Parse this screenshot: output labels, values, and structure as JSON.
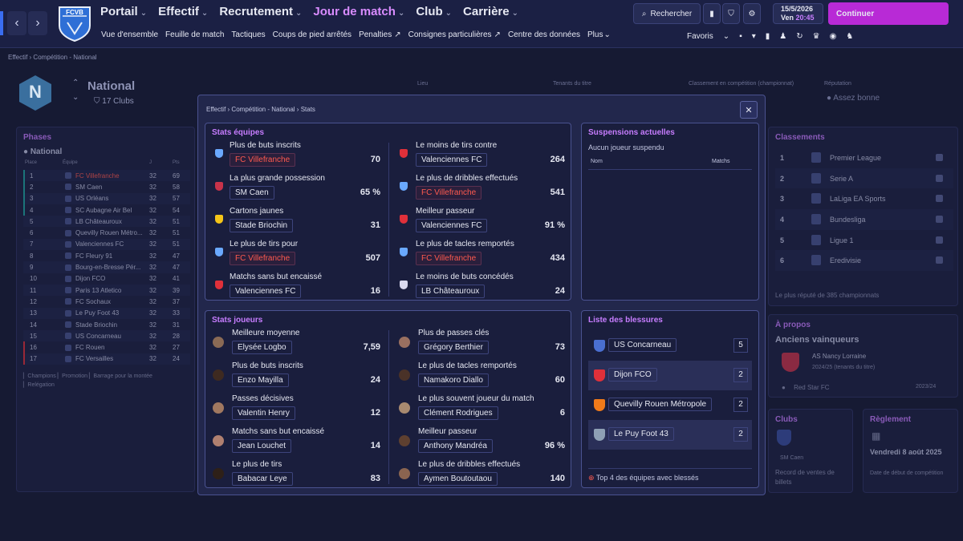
{
  "nav": {
    "main": [
      {
        "label": "Portail"
      },
      {
        "label": "Effectif"
      },
      {
        "label": "Recrutement"
      },
      {
        "label": "Jour de match",
        "active": true
      },
      {
        "label": "Club"
      },
      {
        "label": "Carrière"
      }
    ],
    "sub": [
      "Vue d'ensemble",
      "Feuille de match",
      "Tactiques",
      "Coups de pied arrêtés",
      "Penalties",
      "Consignes particulières",
      "Centre des données",
      "Plus"
    ],
    "search": "Rechercher",
    "date": "15/5/2026",
    "day": "Ven",
    "time": "20:45",
    "continue": "Continuer",
    "favs": "Favoris",
    "logo_text": "FCVB"
  },
  "breadcrumb": {
    "a": "Effectif",
    "b": "Compétition - National"
  },
  "competition": {
    "name": "National",
    "clubs": "17 Clubs",
    "labels": [
      "Lieu",
      "Tenants du titre",
      "Classement en compétition (championnat)",
      "Réputation"
    ],
    "reputation": "Assez bonne"
  },
  "phases": {
    "title": "Phases",
    "league": "National",
    "headers": [
      "Place",
      "Équipe",
      "J",
      "Pts"
    ],
    "rows": [
      [
        "1",
        "FC Villefranche",
        "32",
        "69"
      ],
      [
        "2",
        "SM Caen",
        "32",
        "58"
      ],
      [
        "3",
        "US Orléans",
        "32",
        "57"
      ],
      [
        "4",
        "SC Aubagne Air Bel",
        "32",
        "54"
      ],
      [
        "5",
        "LB Châteauroux",
        "32",
        "51"
      ],
      [
        "6",
        "Quevilly Rouen Métro...",
        "32",
        "51"
      ],
      [
        "7",
        "Valenciennes FC",
        "32",
        "51"
      ],
      [
        "8",
        "FC Fleury 91",
        "32",
        "47"
      ],
      [
        "9",
        "Bourg-en-Bresse Pér...",
        "32",
        "47"
      ],
      [
        "10",
        "Dijon FCO",
        "32",
        "41"
      ],
      [
        "11",
        "Paris 13 Atletico",
        "32",
        "39"
      ],
      [
        "12",
        "FC Sochaux",
        "32",
        "37"
      ],
      [
        "13",
        "Le Puy Foot 43",
        "32",
        "33"
      ],
      [
        "14",
        "Stade Briochin",
        "32",
        "31"
      ],
      [
        "15",
        "US Concarneau",
        "32",
        "28"
      ],
      [
        "16",
        "FC Rouen",
        "32",
        "27"
      ],
      [
        "17",
        "FC Versailles",
        "32",
        "24"
      ]
    ],
    "legend": [
      "Champions",
      "Promotion",
      "Barrage pour la montée",
      "Relégation"
    ]
  },
  "classements": {
    "title": "Classements",
    "rows": [
      [
        "1",
        "Premier League"
      ],
      [
        "2",
        "Serie A"
      ],
      [
        "3",
        "LaLiga EA Sports"
      ],
      [
        "4",
        "Bundesliga"
      ],
      [
        "5",
        "Ligue 1"
      ],
      [
        "6",
        "Eredivisie"
      ]
    ],
    "footer": "Le plus réputé de 385 championnats"
  },
  "apropos": {
    "title": "À propos",
    "sub": "Anciens vainqueurs",
    "winner": "AS Nancy Lorraine",
    "season": "2024/25 (tenants du titre)",
    "winner2": "Red Star FC",
    "season2": "2023/24"
  },
  "clubs": {
    "title": "Clubs",
    "club": "SM Caen",
    "text": "Record de ventes de billets"
  },
  "reglement": {
    "title": "Règlement",
    "date": "Vendredi 8 août 2025",
    "text": "Date de début de compétition"
  },
  "modal": {
    "crumb": [
      "Effectif",
      "Compétition - National",
      "Stats"
    ],
    "close": "✕",
    "team_title": "Stats équipes",
    "team": [
      {
        "label": "Plus de buts inscrits",
        "team": "FC Villefranche",
        "val": "70",
        "hl": true,
        "c": "#6aa9ff"
      },
      {
        "label": "La plus grande possession",
        "team": "SM Caen",
        "val": "65 %",
        "c": "#c8334a"
      },
      {
        "label": "Cartons jaunes",
        "team": "Stade Briochin",
        "val": "31",
        "c": "#f5c518"
      },
      {
        "label": "Le plus de tirs pour",
        "team": "FC Villefranche",
        "val": "507",
        "hl": true,
        "c": "#6aa9ff"
      },
      {
        "label": "Matchs sans but encaissé",
        "team": "Valenciennes FC",
        "val": "16",
        "c": "#e0303a"
      },
      {
        "label": "Le moins de tirs contre",
        "team": "Valenciennes FC",
        "val": "264",
        "c": "#e0303a"
      },
      {
        "label": "Le plus de dribbles effectués",
        "team": "FC Villefranche",
        "val": "541",
        "hl": true,
        "c": "#6aa9ff"
      },
      {
        "label": "Meilleur passeur",
        "team": "Valenciennes FC",
        "val": "91 %",
        "c": "#e0303a"
      },
      {
        "label": "Le plus de tacles remportés",
        "team": "FC Villefranche",
        "val": "434",
        "hl": true,
        "c": "#6aa9ff"
      },
      {
        "label": "Le moins de buts concédés",
        "team": "LB Châteauroux",
        "val": "24",
        "c": "#d9d9ef"
      }
    ],
    "susp_title": "Suspensions actuelles",
    "susp_text": "Aucun joueur suspendu",
    "susp_cols": [
      "Nom",
      "Matchs"
    ],
    "players_title": "Stats joueurs",
    "players": [
      {
        "label": "Meilleure moyenne",
        "name": "Elysée Logbo",
        "val": "7,59"
      },
      {
        "label": "Plus de buts inscrits",
        "name": "Enzo Mayilla",
        "val": "24"
      },
      {
        "label": "Passes décisives",
        "name": "Valentin Henry",
        "val": "12"
      },
      {
        "label": "Matchs sans but encaissé",
        "name": "Jean Louchet",
        "val": "14"
      },
      {
        "label": "Le plus de tirs",
        "name": "Babacar Leye",
        "val": "83"
      },
      {
        "label": "Plus de passes clés",
        "name": "Grégory Berthier",
        "val": "73"
      },
      {
        "label": "Le plus de tacles remportés",
        "name": "Namakoro Diallo",
        "val": "60"
      },
      {
        "label": "Le plus souvent joueur du match",
        "name": "Clément Rodrigues",
        "val": "6"
      },
      {
        "label": "Meilleur passeur",
        "name": "Anthony Mandréa",
        "val": "96 %"
      },
      {
        "label": "Le plus de dribbles effectués",
        "name": "Aymen Boutoutaou",
        "val": "140"
      }
    ],
    "inj_title": "Liste des blessures",
    "injuries": [
      {
        "team": "US Concarneau",
        "val": "5",
        "c": "#4a6fd1"
      },
      {
        "team": "Dijon FCO",
        "val": "2",
        "c": "#e0303a"
      },
      {
        "team": "Quevilly Rouen Métropole",
        "val": "2",
        "c": "#f07a1a"
      },
      {
        "team": "Le Puy Foot 43",
        "val": "2",
        "c": "#8ea0b5"
      }
    ],
    "inj_footer": "Top 4 des équipes avec blessés"
  }
}
